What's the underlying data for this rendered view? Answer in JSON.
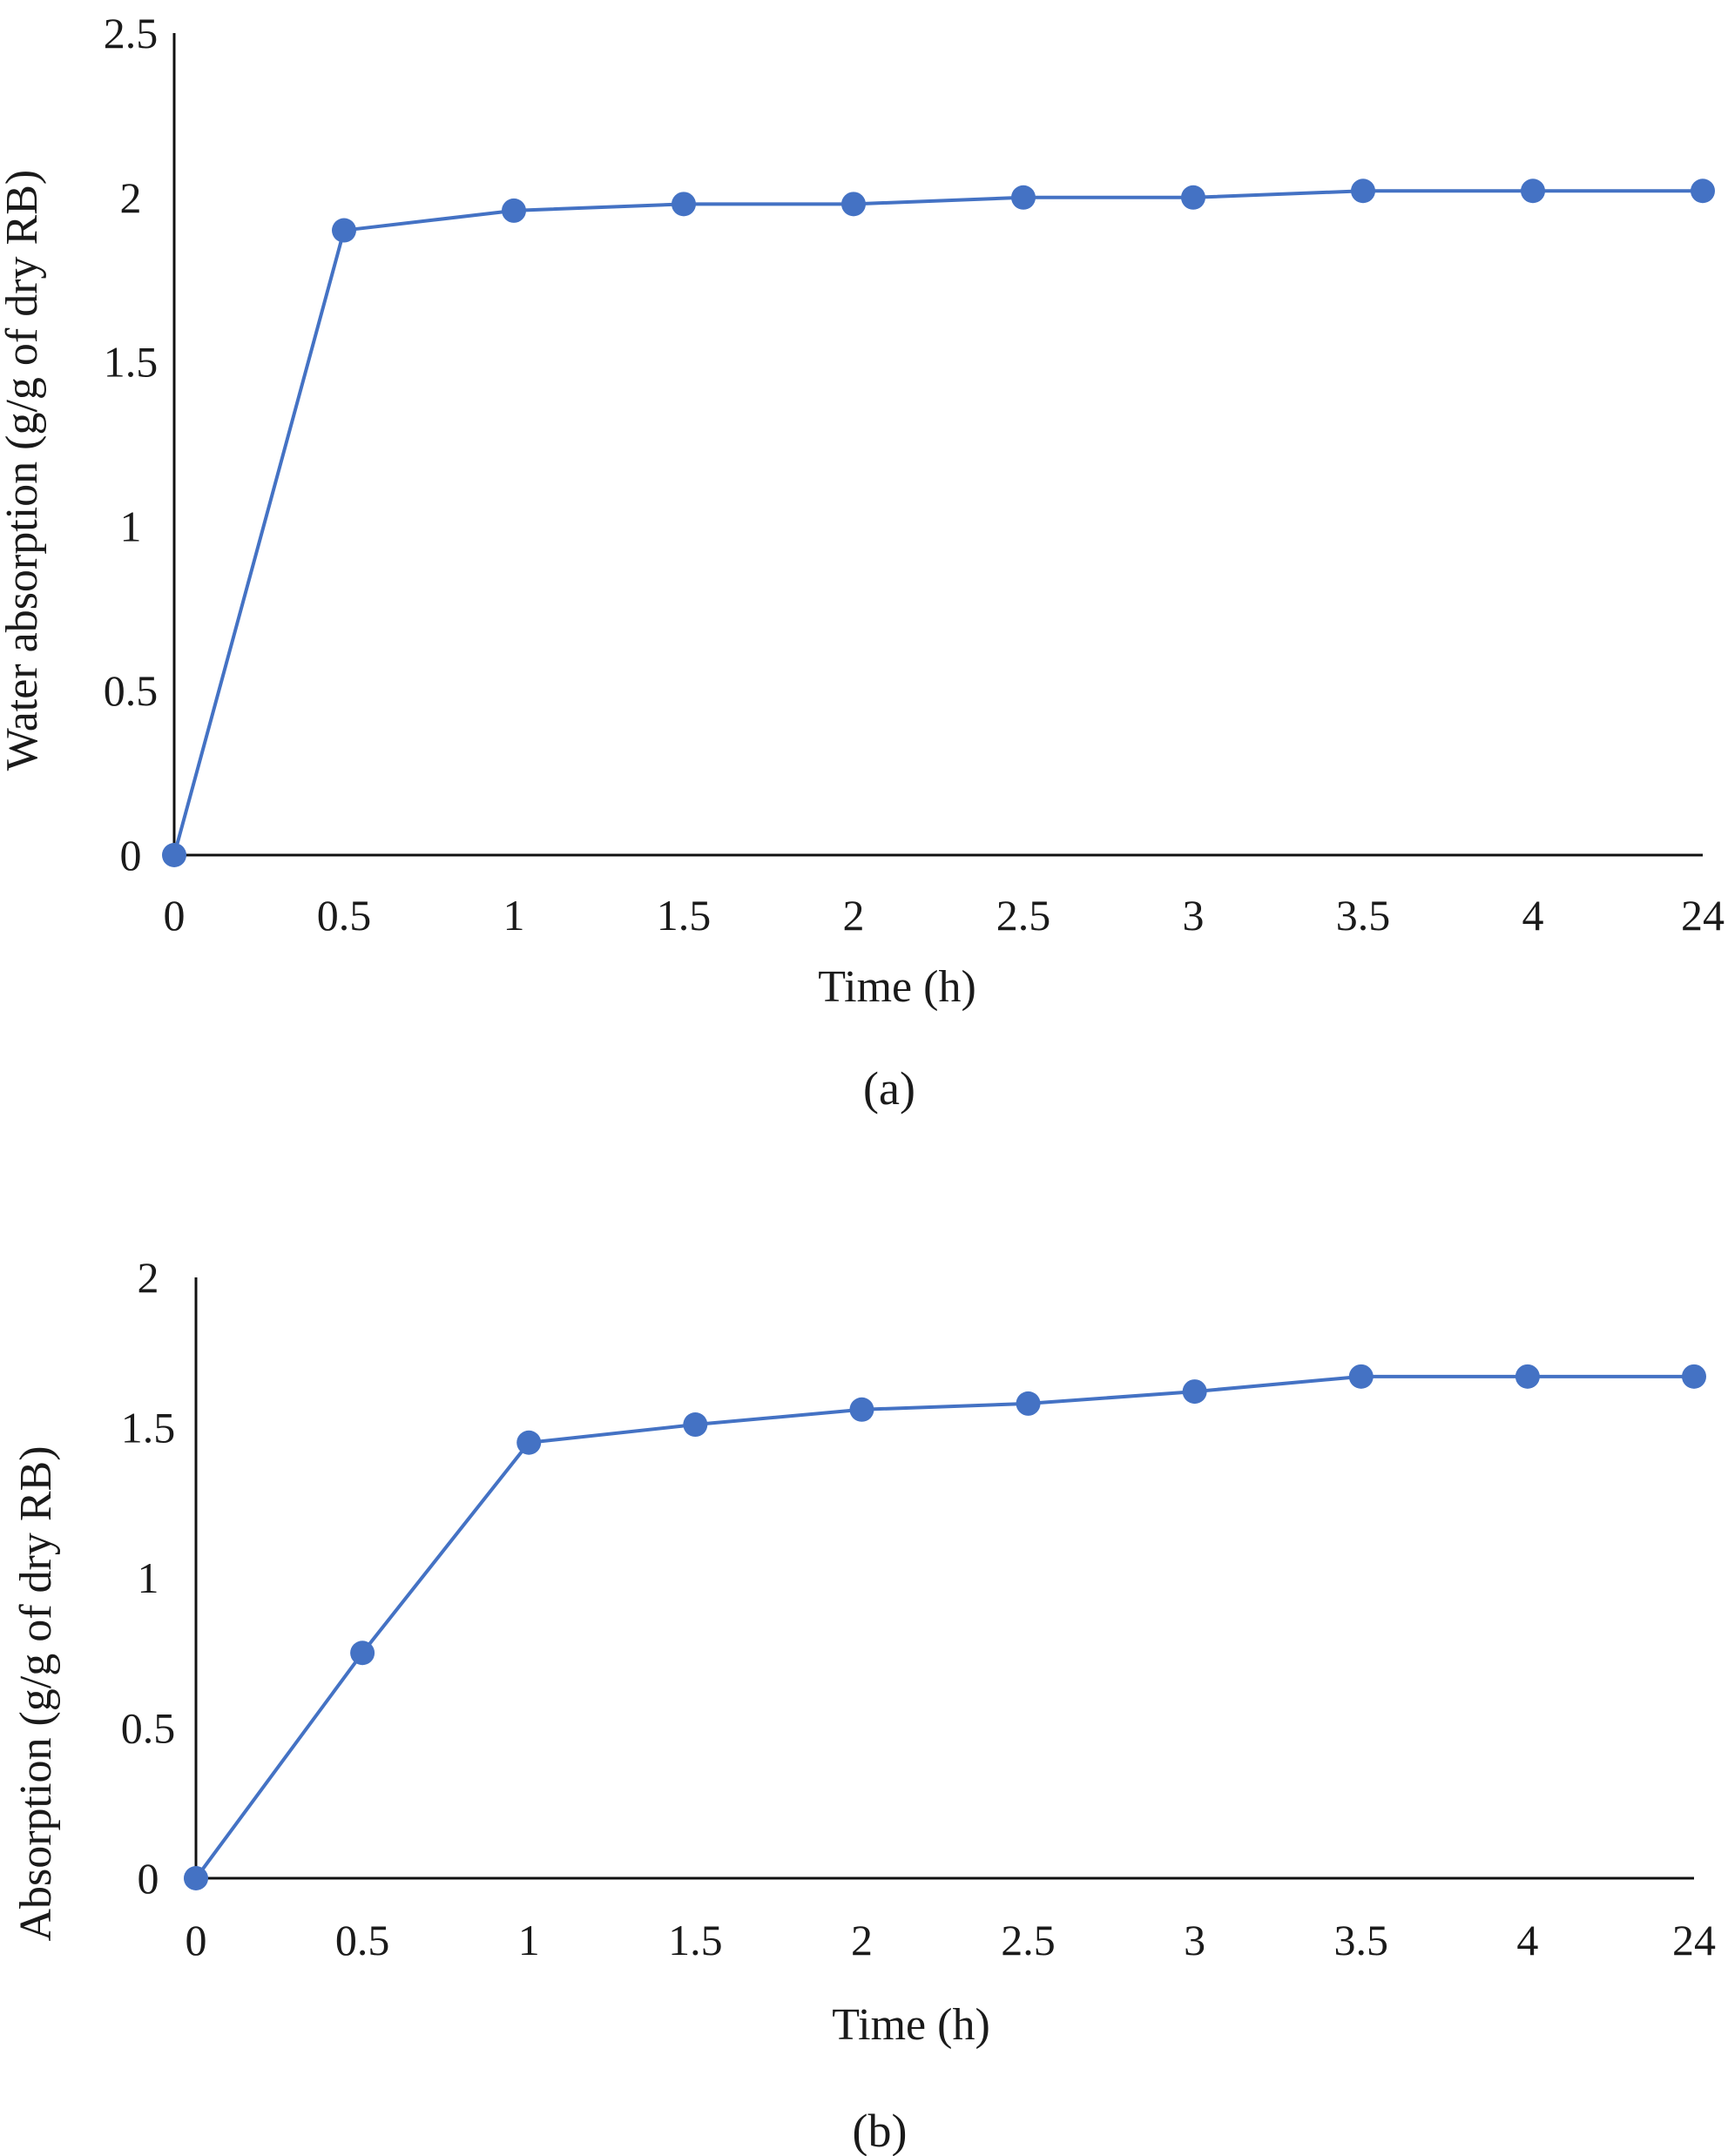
{
  "chart_data": [
    {
      "type": "line",
      "panel_label": "(a)",
      "xlabel": "Time (h)",
      "ylabel": "Water absorption (g/g of dry RB)",
      "categories": [
        "0",
        "0.5",
        "1",
        "1.5",
        "2",
        "2.5",
        "3",
        "3.5",
        "4",
        "24"
      ],
      "series": [
        {
          "values": [
            0,
            1.9,
            1.96,
            1.98,
            1.98,
            2.0,
            2.0,
            2.02,
            2.02,
            2.02
          ]
        }
      ],
      "ylim": [
        0,
        2.5
      ],
      "yticks": [
        "0",
        "0.5",
        "1",
        "1.5",
        "2",
        "2.5"
      ],
      "ytick_values": [
        0,
        0.5,
        1,
        1.5,
        2,
        2.5
      ],
      "grid": false,
      "legend": "none",
      "color": "#4472C4"
    },
    {
      "type": "line",
      "panel_label": "(b)",
      "xlabel": "Time (h)",
      "ylabel": "Absorption (g/g of dry RB)",
      "categories": [
        "0",
        "0.5",
        "1",
        "1.5",
        "2",
        "2.5",
        "3",
        "3.5",
        "4",
        "24"
      ],
      "series": [
        {
          "values": [
            0,
            0.75,
            1.45,
            1.51,
            1.56,
            1.58,
            1.62,
            1.67,
            1.67,
            1.67
          ]
        }
      ],
      "ylim": [
        0,
        2
      ],
      "yticks": [
        "0",
        "0.5",
        "1",
        "1.5",
        "2"
      ],
      "ytick_values": [
        0,
        0.5,
        1,
        1.5,
        2
      ],
      "grid": false,
      "legend": "none",
      "color": "#4472C4"
    }
  ]
}
